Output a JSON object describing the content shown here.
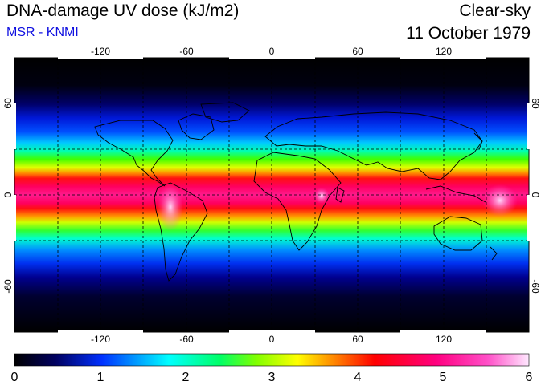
{
  "header": {
    "title": "DNA-damage UV dose (kJ/m2)",
    "source": "MSR - KNMI",
    "condition": "Clear-sky",
    "date": "11 October 1979"
  },
  "map": {
    "lon_ticks": [
      "-120",
      "-60",
      "0",
      "60",
      "120"
    ],
    "lat_ticks_left": [
      "60",
      "0",
      "-60"
    ],
    "lat_ticks_right": [
      "60",
      "0",
      "-60"
    ]
  },
  "colorbar": {
    "labels": [
      "0",
      "1",
      "2",
      "3",
      "4",
      "5",
      "6"
    ],
    "colors": [
      "#000000",
      "#000088",
      "#0040ff",
      "#00ffff",
      "#00ff66",
      "#66ff00",
      "#ffff00",
      "#ff9900",
      "#ff0000",
      "#ff0080",
      "#ff40c0",
      "#ffe0ff"
    ]
  }
}
